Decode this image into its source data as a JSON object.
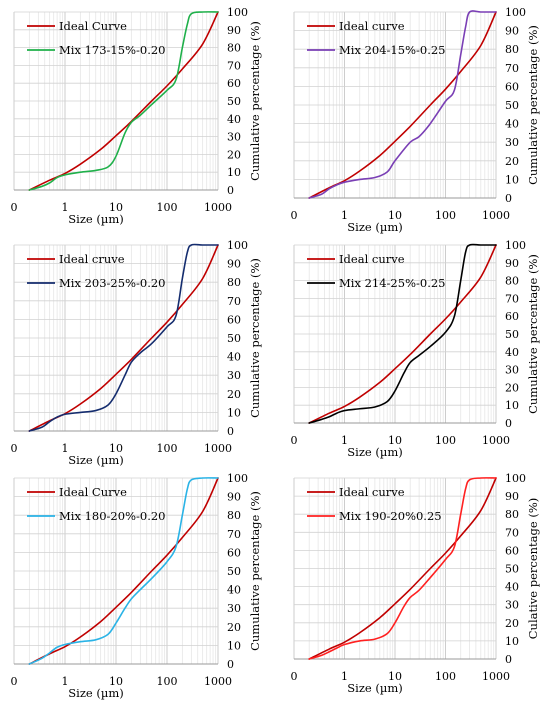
{
  "chart_data": [
    {
      "type": "line",
      "xlabel": "Size (µm)",
      "ylabel": "Cumulative percentage (%)",
      "xscale": "log",
      "xlim": [
        0.1,
        1000
      ],
      "ylim": [
        0,
        100
      ],
      "xticks": [
        "0",
        "1",
        "10",
        "100",
        "1000"
      ],
      "yticks": [
        "0",
        "10",
        "20",
        "30",
        "40",
        "50",
        "60",
        "70",
        "80",
        "90",
        "100"
      ],
      "grid": true,
      "legend_position": "top-left",
      "colors": {
        "ideal": "#c00000",
        "mix": "#1fb04a"
      },
      "series": [
        {
          "name": "Ideal Curve",
          "x": [
            0.2,
            0.5,
            1,
            2,
            5,
            10,
            20,
            50,
            100,
            200,
            500,
            1000
          ],
          "y": [
            0,
            5.5,
            9.3,
            14.5,
            22.8,
            30.5,
            38.5,
            50,
            58.5,
            68,
            82,
            100
          ]
        },
        {
          "name": "Mix 173-15%-0.20",
          "x": [
            0.2,
            0.35,
            0.5,
            0.7,
            1,
            2,
            4,
            7,
            10,
            15,
            20,
            30,
            50,
            100,
            150,
            200,
            250,
            300,
            500,
            1000
          ],
          "y": [
            0,
            2,
            4,
            7,
            8.5,
            10,
            11,
            13,
            19,
            32,
            38,
            42,
            48,
            56,
            62,
            80,
            93,
            99,
            100,
            100
          ]
        }
      ]
    },
    {
      "type": "line",
      "xlabel": "Size (µm)",
      "ylabel": "Cumulative percentage (%)",
      "xscale": "log",
      "xlim": [
        0.1,
        1000
      ],
      "ylim": [
        0,
        100
      ],
      "xticks": [
        "0",
        "1",
        "10",
        "100",
        "1000"
      ],
      "yticks": [
        "0",
        "10",
        "20",
        "30",
        "40",
        "50",
        "60",
        "70",
        "80",
        "90",
        "100"
      ],
      "grid": true,
      "legend_position": "top-left",
      "colors": {
        "ideal": "#c00000",
        "mix": "#7a3fb5"
      },
      "series": [
        {
          "name": "Ideal curve",
          "x": [
            0.2,
            0.5,
            1,
            2,
            5,
            10,
            20,
            50,
            100,
            200,
            500,
            1000
          ],
          "y": [
            0,
            5.5,
            9.3,
            14.5,
            22.8,
            30.5,
            38.5,
            50,
            58.5,
            68,
            82,
            100
          ]
        },
        {
          "name": "Mix 204-15%-0.25",
          "x": [
            0.2,
            0.35,
            0.5,
            0.7,
            1,
            2,
            4,
            7,
            10,
            20,
            30,
            50,
            100,
            150,
            200,
            250,
            300,
            500,
            1000
          ],
          "y": [
            0,
            2,
            5,
            7,
            8.5,
            10,
            11,
            14,
            20,
            30,
            33,
            40,
            52,
            58,
            77,
            92,
            100,
            100,
            100
          ]
        }
      ]
    },
    {
      "type": "line",
      "xlabel": "Size (µm)",
      "ylabel": "Cumulative percentage (%)",
      "xscale": "log",
      "xlim": [
        0.1,
        1000
      ],
      "ylim": [
        0,
        100
      ],
      "xticks": [
        "0",
        "1",
        "10",
        "100",
        "1000"
      ],
      "yticks": [
        "0",
        "10",
        "20",
        "30",
        "40",
        "50",
        "60",
        "70",
        "80",
        "90",
        "100"
      ],
      "grid": true,
      "legend_position": "top-left",
      "colors": {
        "ideal": "#c00000",
        "mix": "#142c6e"
      },
      "series": [
        {
          "name": "Ideal cruve",
          "x": [
            0.2,
            0.5,
            1,
            2,
            5,
            10,
            20,
            50,
            100,
            200,
            500,
            1000
          ],
          "y": [
            0,
            5.5,
            9.3,
            14.5,
            22.8,
            30.5,
            38.5,
            50,
            58.5,
            68,
            82,
            100
          ]
        },
        {
          "name": "Mix 203-25%-0.20",
          "x": [
            0.2,
            0.35,
            0.5,
            0.7,
            1,
            2,
            4,
            7,
            10,
            15,
            20,
            30,
            50,
            100,
            150,
            200,
            250,
            300,
            500,
            1000
          ],
          "y": [
            0,
            2,
            5,
            7.5,
            9,
            10,
            11,
            14,
            20,
            30,
            37,
            42,
            47,
            56,
            62,
            82,
            96,
            100,
            100,
            100
          ]
        }
      ]
    },
    {
      "type": "line",
      "xlabel": "Size (µm)",
      "ylabel": "Cumulative percentage (%)",
      "xscale": "log",
      "xlim": [
        0.1,
        1000
      ],
      "ylim": [
        0,
        100
      ],
      "xticks": [
        "0",
        "1",
        "10",
        "100",
        "1000"
      ],
      "yticks": [
        "0",
        "10",
        "20",
        "30",
        "40",
        "50",
        "60",
        "70",
        "80",
        "90",
        "100"
      ],
      "grid": true,
      "legend_position": "top-left",
      "colors": {
        "ideal": "#c00000",
        "mix": "#000000"
      },
      "series": [
        {
          "name": "Ideal curve",
          "x": [
            0.2,
            0.5,
            1,
            2,
            5,
            10,
            20,
            50,
            100,
            200,
            500,
            1000
          ],
          "y": [
            0,
            5.5,
            9.3,
            14.5,
            22.8,
            30.5,
            38.5,
            50,
            58.5,
            68,
            82,
            100
          ]
        },
        {
          "name": "Mix 214-25%-0.25",
          "x": [
            0.2,
            0.35,
            0.5,
            0.7,
            1,
            2,
            4,
            7,
            10,
            15,
            20,
            30,
            50,
            100,
            150,
            200,
            250,
            300,
            500,
            1000
          ],
          "y": [
            0,
            2,
            3.5,
            5.5,
            7,
            8,
            9,
            12,
            18,
            28,
            34,
            38,
            43,
            51,
            60,
            80,
            96,
            100,
            100,
            100
          ]
        }
      ]
    },
    {
      "type": "line",
      "xlabel": "Size (µm)",
      "ylabel": "Cumulative percentage (%)",
      "xscale": "log",
      "xlim": [
        0.1,
        1000
      ],
      "ylim": [
        0,
        100
      ],
      "xticks": [
        "0",
        "1",
        "10",
        "100",
        "1000"
      ],
      "yticks": [
        "0",
        "10",
        "20",
        "30",
        "40",
        "50",
        "60",
        "70",
        "80",
        "90",
        "100"
      ],
      "grid": true,
      "legend_position": "top-left",
      "colors": {
        "ideal": "#c00000",
        "mix": "#2ab3e6"
      },
      "series": [
        {
          "name": "Ideal Curve",
          "x": [
            0.2,
            0.5,
            1,
            2,
            5,
            10,
            20,
            50,
            100,
            200,
            500,
            1000
          ],
          "y": [
            0,
            5.5,
            9.3,
            14.5,
            22.8,
            30.5,
            38.5,
            50,
            58.5,
            68,
            82,
            100
          ]
        },
        {
          "name": "Mix 180-20%-0.20",
          "x": [
            0.2,
            0.35,
            0.5,
            0.7,
            1,
            2,
            4,
            7,
            10,
            15,
            20,
            30,
            50,
            100,
            150,
            200,
            250,
            300,
            500,
            1000
          ],
          "y": [
            0,
            3,
            6,
            9,
            10.5,
            12,
            13,
            16,
            22,
            30,
            35,
            40,
            46,
            55,
            63,
            80,
            94,
            99,
            100,
            100
          ]
        }
      ]
    },
    {
      "type": "line",
      "xlabel": "Size (µm)",
      "ylabel": "Culative percentage (%)",
      "xscale": "log",
      "xlim": [
        0.1,
        1000
      ],
      "ylim": [
        0,
        100
      ],
      "xticks": [
        "0",
        "1",
        "10",
        "100",
        "1000"
      ],
      "yticks": [
        "0",
        "10",
        "20",
        "30",
        "40",
        "50",
        "60",
        "70",
        "80",
        "90",
        "100"
      ],
      "grid": true,
      "legend_position": "top-left",
      "colors": {
        "ideal": "#c00000",
        "mix": "#ff2020"
      },
      "series": [
        {
          "name": "Ideal curve",
          "x": [
            0.2,
            0.5,
            1,
            2,
            5,
            10,
            20,
            50,
            100,
            200,
            500,
            1000
          ],
          "y": [
            0,
            5.5,
            9.3,
            14.5,
            22.8,
            30.5,
            38.5,
            50,
            58.5,
            68,
            82,
            100
          ]
        },
        {
          "name": "Mix 190-20%0.25",
          "x": [
            0.2,
            0.35,
            0.5,
            0.7,
            1,
            2,
            4,
            7,
            10,
            15,
            20,
            30,
            50,
            100,
            150,
            200,
            250,
            300,
            500,
            1000
          ],
          "y": [
            0,
            2,
            4,
            6,
            8,
            10,
            11,
            14,
            20,
            29,
            34,
            38,
            45,
            55,
            62,
            80,
            94,
            99,
            100,
            100
          ]
        }
      ]
    }
  ]
}
